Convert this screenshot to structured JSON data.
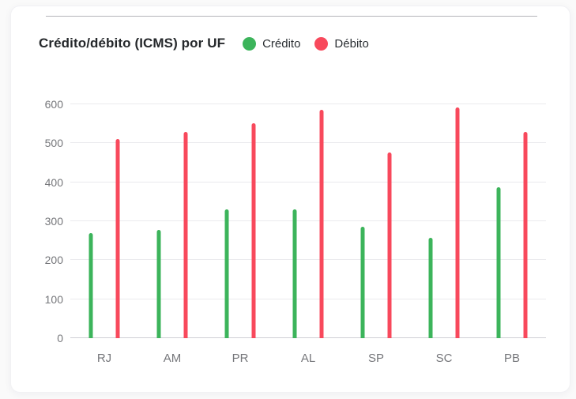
{
  "page": {
    "background": "#fafafa"
  },
  "card": {
    "background": "#ffffff",
    "divider_color": "#b5b5ba"
  },
  "header": {
    "title": "Crédito/débito (ICMS) por UF",
    "legend": [
      {
        "label": "Crédito",
        "color": "#3cb45b"
      },
      {
        "label": "Débito",
        "color": "#f8495c"
      }
    ]
  },
  "chart_data": {
    "type": "bar",
    "title": "Crédito/débito (ICMS) por UF",
    "categories": [
      "RJ",
      "AM",
      "PR",
      "AL",
      "SP",
      "SC",
      "PB"
    ],
    "series": [
      {
        "name": "Crédito",
        "color": "#3cb45b",
        "values": [
          270,
          278,
          330,
          330,
          285,
          257,
          388
        ]
      },
      {
        "name": "Débito",
        "color": "#f8495c",
        "values": [
          510,
          530,
          552,
          585,
          477,
          592,
          530
        ]
      }
    ],
    "xlabel": "",
    "ylabel": "",
    "ylim": [
      0,
      600
    ],
    "yticks": [
      0,
      100,
      200,
      300,
      400,
      500,
      600
    ],
    "grid": "horizontal",
    "legend_position": "top",
    "axis_text_color": "#76777b",
    "gridline_color": "#eaeaed",
    "zero_line_color": "#cfcfd4"
  }
}
